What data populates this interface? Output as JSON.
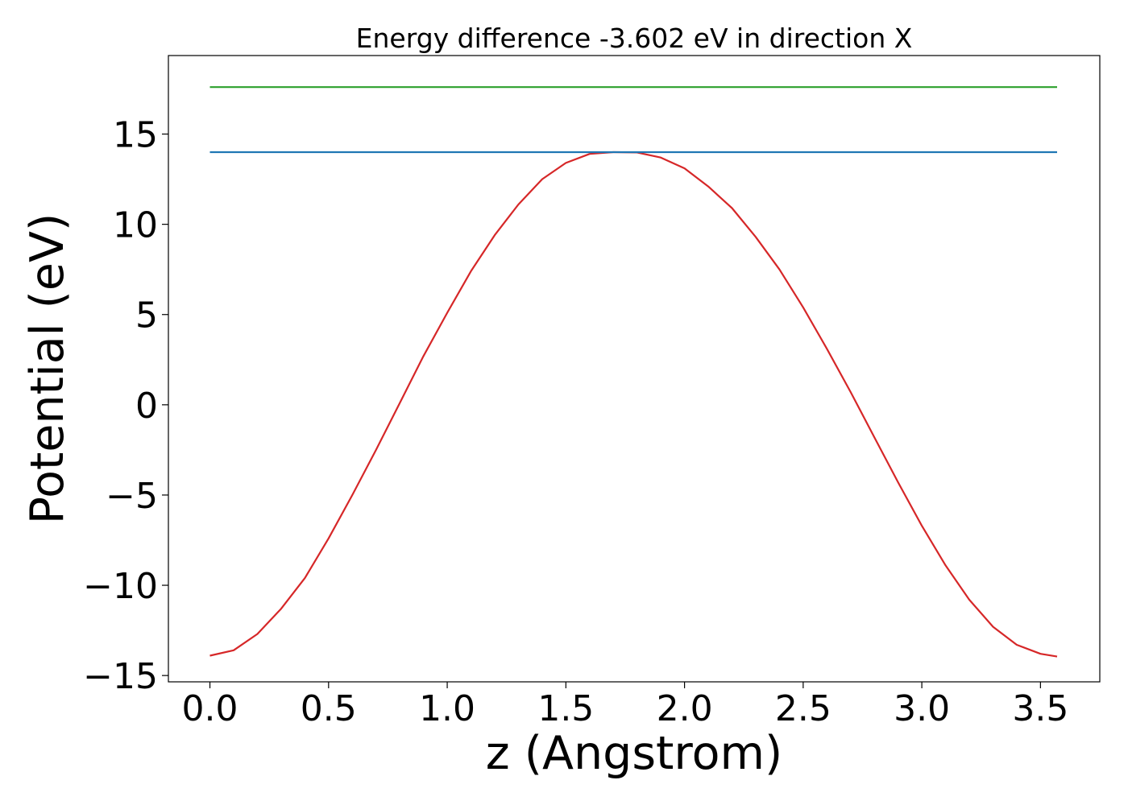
{
  "chart_data": {
    "type": "line",
    "title": "Energy difference -3.602 eV in direction X",
    "xlabel": "z (Angstrom)",
    "ylabel": "Potential (eV)",
    "xlim": [
      -0.175,
      3.75
    ],
    "ylim": [
      -15.35,
      19.35
    ],
    "xticks": [
      0.0,
      0.5,
      1.0,
      1.5,
      2.0,
      2.5,
      3.0,
      3.5
    ],
    "xtick_labels": [
      "0.0",
      "0.5",
      "1.0",
      "1.5",
      "2.0",
      "2.5",
      "3.0",
      "3.5"
    ],
    "yticks": [
      -15,
      -10,
      -5,
      0,
      5,
      10,
      15
    ],
    "ytick_labels": [
      "−15",
      "−10",
      "−5",
      "0",
      "5",
      "10",
      "15"
    ],
    "grid": false,
    "series": [
      {
        "color": "#d62728",
        "x": [
          0.0,
          0.1,
          0.2,
          0.3,
          0.4,
          0.5,
          0.6,
          0.7,
          0.8,
          0.9,
          1.0,
          1.1,
          1.2,
          1.3,
          1.4,
          1.5,
          1.6,
          1.7,
          1.8,
          1.9,
          2.0,
          2.1,
          2.2,
          2.3,
          2.4,
          2.5,
          2.6,
          2.7,
          2.8,
          2.9,
          3.0,
          3.1,
          3.2,
          3.3,
          3.4,
          3.5,
          3.57
        ],
        "values": [
          -13.9,
          -13.6,
          -12.7,
          -11.3,
          -9.6,
          -7.4,
          -5.0,
          -2.5,
          0.1,
          2.7,
          5.1,
          7.4,
          9.4,
          11.1,
          12.5,
          13.4,
          13.9,
          14.0,
          13.98,
          13.7,
          13.1,
          12.1,
          10.9,
          9.3,
          7.5,
          5.4,
          3.1,
          0.7,
          -1.8,
          -4.3,
          -6.7,
          -8.9,
          -10.8,
          -12.3,
          -13.3,
          -13.8,
          -13.95
        ]
      },
      {
        "color": "#1f77b4",
        "x": [
          0.0,
          3.57
        ],
        "values": [
          14.0,
          14.0
        ]
      },
      {
        "color": "#2ca02c",
        "x": [
          0.0,
          3.57
        ],
        "values": [
          17.6,
          17.6
        ]
      }
    ]
  }
}
